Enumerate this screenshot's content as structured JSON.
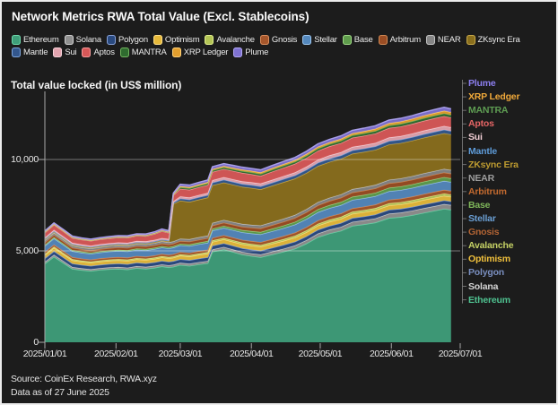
{
  "header": {
    "title": "Network Metrics RWA Total Value (Excl. Stablecoins)"
  },
  "footer": {
    "source": "Source: CoinEx Research, RWA.xyz",
    "asof": "Data as of 27 June 2025"
  },
  "colors": {
    "background": "#1c1c1c",
    "border": "#ececec",
    "gridline": "#cfcfcf",
    "axis": "#9a9a9a",
    "text": "#f5f5f5"
  },
  "chart_data": {
    "type": "area",
    "stacked": true,
    "title": "Network Metrics RWA Total Value (Excl. Stablecoins)",
    "ylabel": "Total value locked (in US$ million)",
    "xlabel": "",
    "grid": "horizontal",
    "legend_position": "top-and-right",
    "ylim": [
      0,
      13500
    ],
    "y_ticks": [
      {
        "value": 0,
        "label": "0"
      },
      {
        "value": 5000,
        "label": "5,000"
      },
      {
        "value": 10000,
        "label": "10,000"
      }
    ],
    "x_ticks": [
      "2025/01/01",
      "2025/02/01",
      "2025/03/01",
      "2025/04/01",
      "2025/05/01",
      "2025/06/01",
      "2025/07/01"
    ],
    "x": [
      "2025/01/01",
      "2025/01/05",
      "2025/01/09",
      "2025/01/13",
      "2025/01/17",
      "2025/01/21",
      "2025/01/25",
      "2025/01/29",
      "2025/02/02",
      "2025/02/06",
      "2025/02/10",
      "2025/02/14",
      "2025/02/18",
      "2025/02/21",
      "2025/02/24",
      "2025/02/26",
      "2025/03/01",
      "2025/03/05",
      "2025/03/09",
      "2025/03/13",
      "2025/03/15",
      "2025/03/20",
      "2025/03/24",
      "2025/03/28",
      "2025/04/01",
      "2025/04/05",
      "2025/04/10",
      "2025/04/15",
      "2025/04/20",
      "2025/04/25",
      "2025/04/30",
      "2025/05/05",
      "2025/05/10",
      "2025/05/15",
      "2025/05/20",
      "2025/05/25",
      "2025/05/31",
      "2025/06/05",
      "2025/06/10",
      "2025/06/15",
      "2025/06/20",
      "2025/06/24",
      "2025/06/27"
    ],
    "legend_rows": [
      [
        "Ethereum",
        "Solana",
        "Polygon",
        "Optimism",
        "Avalanche",
        "Gnosis",
        "Stellar",
        "Base",
        "Arbitrum",
        "NEAR",
        "ZKsync Era"
      ],
      [
        "Mantle",
        "Sui",
        "Aptos",
        "MANTRA",
        "XRP Ledger",
        "Plume"
      ]
    ],
    "series": [
      {
        "name": "Ethereum",
        "fill": "#3f9e7a",
        "stroke": "#6fd9ac",
        "label_color": "#4fc391",
        "values": [
          4300,
          4680,
          4350,
          4020,
          3950,
          3900,
          3960,
          4000,
          4020,
          3980,
          4060,
          4020,
          4080,
          4150,
          4100,
          4130,
          4230,
          4180,
          4260,
          4330,
          4950,
          5080,
          4940,
          4800,
          4720,
          4650,
          4800,
          4950,
          5120,
          5400,
          5750,
          5950,
          6100,
          6370,
          6450,
          6550,
          6800,
          6850,
          6950,
          7080,
          7200,
          7300,
          7250
        ]
      },
      {
        "name": "Solana",
        "fill": "#8f8f8f",
        "stroke": "#cfcfcf",
        "label_color": "#d6d6d6",
        "values": [
          100,
          110,
          105,
          100,
          98,
          96,
          98,
          100,
          102,
          104,
          106,
          108,
          110,
          112,
          112,
          114,
          116,
          118,
          120,
          122,
          130,
          135,
          140,
          145,
          150,
          155,
          160,
          170,
          180,
          190,
          200,
          210,
          215,
          220,
          225,
          230,
          240,
          245,
          250,
          255,
          258,
          260,
          258
        ]
      },
      {
        "name": "Polygon",
        "fill": "#2a4a80",
        "stroke": "#8aa3d8",
        "label_color": "#7a8fc0",
        "values": [
          190,
          195,
          192,
          188,
          185,
          183,
          184,
          186,
          188,
          190,
          191,
          192,
          193,
          194,
          194,
          195,
          196,
          197,
          198,
          199,
          202,
          203,
          204,
          204,
          205,
          205,
          205,
          206,
          206,
          207,
          207,
          208,
          208,
          208,
          208,
          208,
          208,
          207,
          207,
          206,
          206,
          205,
          205
        ]
      },
      {
        "name": "Optimism",
        "fill": "#e6b93a",
        "stroke": "#ffe08a",
        "label_color": "#f0c03c",
        "values": [
          180,
          185,
          182,
          178,
          176,
          175,
          176,
          178,
          180,
          182,
          184,
          186,
          188,
          190,
          190,
          192,
          196,
          198,
          200,
          202,
          210,
          212,
          214,
          216,
          218,
          220,
          222,
          224,
          226,
          228,
          230,
          232,
          234,
          236,
          238,
          240,
          242,
          244,
          246,
          248,
          250,
          250,
          248
        ]
      },
      {
        "name": "Avalanche",
        "fill": "#b3c455",
        "stroke": "#e2f08f",
        "label_color": "#c6d265",
        "values": [
          60,
          62,
          61,
          60,
          59,
          58,
          59,
          60,
          61,
          62,
          63,
          64,
          65,
          66,
          66,
          67,
          70,
          72,
          74,
          76,
          80,
          82,
          84,
          86,
          88,
          90,
          92,
          94,
          96,
          98,
          100,
          102,
          104,
          106,
          108,
          110,
          112,
          114,
          116,
          118,
          120,
          120,
          119
        ]
      },
      {
        "name": "Gnosis",
        "fill": "#a5562b",
        "stroke": "#d98f5f",
        "label_color": "#b26434",
        "values": [
          110,
          112,
          111,
          110,
          109,
          108,
          109,
          110,
          112,
          114,
          116,
          118,
          120,
          122,
          122,
          124,
          130,
          132,
          134,
          136,
          140,
          144,
          148,
          152,
          156,
          160,
          164,
          168,
          172,
          176,
          180,
          184,
          188,
          190,
          192,
          194,
          196,
          198,
          200,
          202,
          204,
          205,
          204
        ]
      },
      {
        "name": "Stellar",
        "fill": "#5488bd",
        "stroke": "#9ec7ef",
        "label_color": "#6b9fd4",
        "values": [
          330,
          340,
          335,
          330,
          326,
          322,
          326,
          330,
          334,
          338,
          342,
          346,
          350,
          354,
          354,
          358,
          370,
          374,
          378,
          382,
          400,
          405,
          410,
          415,
          420,
          425,
          430,
          435,
          440,
          445,
          450,
          455,
          458,
          460,
          462,
          464,
          468,
          472,
          476,
          480,
          485,
          488,
          486
        ]
      },
      {
        "name": "Base",
        "fill": "#5f9c4c",
        "stroke": "#9fd886",
        "label_color": "#7fb65a",
        "values": [
          60,
          62,
          61,
          60,
          59,
          58,
          59,
          60,
          62,
          64,
          66,
          68,
          70,
          72,
          72,
          74,
          80,
          84,
          88,
          92,
          100,
          106,
          112,
          118,
          124,
          130,
          136,
          142,
          148,
          154,
          160,
          165,
          170,
          175,
          180,
          185,
          190,
          193,
          196,
          199,
          202,
          204,
          203
        ]
      },
      {
        "name": "Arbitrum",
        "fill": "#9a4d24",
        "stroke": "#d08a55",
        "label_color": "#c1692f",
        "values": [
          130,
          133,
          131,
          129,
          127,
          126,
          127,
          129,
          131,
          133,
          135,
          137,
          139,
          141,
          141,
          143,
          150,
          154,
          158,
          162,
          170,
          175,
          180,
          185,
          190,
          195,
          200,
          205,
          210,
          215,
          220,
          224,
          228,
          232,
          236,
          240,
          244,
          247,
          250,
          252,
          254,
          255,
          254
        ]
      },
      {
        "name": "NEAR",
        "fill": "#858585",
        "stroke": "#c4c4c4",
        "label_color": "#9e9e9e",
        "values": [
          110,
          112,
          111,
          110,
          109,
          108,
          109,
          110,
          112,
          114,
          116,
          118,
          120,
          122,
          122,
          124,
          130,
          133,
          136,
          139,
          145,
          148,
          151,
          154,
          157,
          160,
          163,
          166,
          169,
          172,
          175,
          178,
          181,
          184,
          187,
          190,
          193,
          195,
          197,
          199,
          200,
          200,
          199
        ]
      },
      {
        "name": "ZKsync Era",
        "fill": "#8a6f1d",
        "stroke": "#c9a94a",
        "label_color": "#bd9b30",
        "values": [
          45,
          46,
          46,
          45,
          45,
          44,
          45,
          45,
          46,
          46,
          47,
          47,
          48,
          48,
          48,
          2050,
          2080,
          2040,
          2060,
          2080,
          2060,
          2050,
          2040,
          2030,
          2020,
          1980,
          1990,
          2000,
          1990,
          1980,
          1970,
          1960,
          1950,
          1940,
          1930,
          1920,
          1930,
          1930,
          1940,
          1950,
          1950,
          1950,
          1940
        ]
      },
      {
        "name": "Mantle",
        "fill": "#33578d",
        "stroke": "#7fa6dd",
        "label_color": "#5e9bd8",
        "values": [
          40,
          41,
          41,
          40,
          40,
          39,
          40,
          40,
          41,
          42,
          43,
          44,
          45,
          46,
          46,
          60,
          120,
          125,
          130,
          135,
          150,
          153,
          156,
          159,
          162,
          165,
          168,
          171,
          174,
          177,
          180,
          182,
          184,
          186,
          188,
          190,
          191,
          192,
          193,
          194,
          195,
          195,
          194
        ]
      },
      {
        "name": "Sui",
        "fill": "#e3a4af",
        "stroke": "#f7d3da",
        "label_color": "#f2cfd5",
        "values": [
          70,
          72,
          71,
          70,
          69,
          68,
          69,
          70,
          72,
          74,
          76,
          78,
          80,
          82,
          82,
          84,
          110,
          113,
          116,
          119,
          130,
          134,
          138,
          142,
          146,
          150,
          154,
          158,
          162,
          166,
          170,
          174,
          178,
          182,
          185,
          188,
          191,
          193,
          195,
          197,
          199,
          200,
          199
        ]
      },
      {
        "name": "Aptos",
        "fill": "#d85858",
        "stroke": "#f59b9b",
        "label_color": "#e56565",
        "values": [
          270,
          280,
          275,
          270,
          266,
          262,
          266,
          270,
          274,
          278,
          282,
          286,
          330,
          380,
          340,
          330,
          420,
          425,
          430,
          435,
          450,
          455,
          460,
          465,
          440,
          420,
          450,
          460,
          470,
          480,
          490,
          495,
          500,
          505,
          510,
          515,
          520,
          525,
          530,
          535,
          540,
          540,
          535
        ]
      },
      {
        "name": "MANTRA",
        "fill": "#2f6b2f",
        "stroke": "#72b45f",
        "label_color": "#5f9e53",
        "values": [
          25,
          26,
          26,
          25,
          25,
          25,
          25,
          26,
          26,
          27,
          27,
          28,
          28,
          29,
          29,
          30,
          80,
          82,
          84,
          86,
          90,
          93,
          96,
          99,
          102,
          105,
          108,
          111,
          114,
          117,
          120,
          123,
          126,
          129,
          132,
          135,
          138,
          141,
          144,
          147,
          150,
          150,
          149
        ]
      },
      {
        "name": "XRP Ledger",
        "fill": "#e39f2e",
        "stroke": "#ffd27a",
        "label_color": "#f0a93a",
        "values": [
          15,
          16,
          16,
          15,
          15,
          15,
          15,
          16,
          16,
          17,
          17,
          18,
          18,
          19,
          19,
          20,
          60,
          62,
          64,
          66,
          70,
          73,
          76,
          79,
          82,
          85,
          88,
          91,
          94,
          97,
          100,
          104,
          108,
          112,
          116,
          120,
          126,
          130,
          134,
          138,
          142,
          146,
          145
        ]
      },
      {
        "name": "Plume",
        "fill": "#7f72d2",
        "stroke": "#b3a8f5",
        "label_color": "#8d7ff0",
        "values": [
          60,
          62,
          61,
          60,
          59,
          58,
          59,
          60,
          62,
          64,
          66,
          68,
          70,
          72,
          72,
          74,
          110,
          113,
          116,
          119,
          125,
          128,
          131,
          134,
          137,
          140,
          143,
          146,
          149,
          152,
          155,
          158,
          161,
          164,
          167,
          170,
          174,
          177,
          180,
          183,
          186,
          188,
          187
        ]
      }
    ]
  }
}
